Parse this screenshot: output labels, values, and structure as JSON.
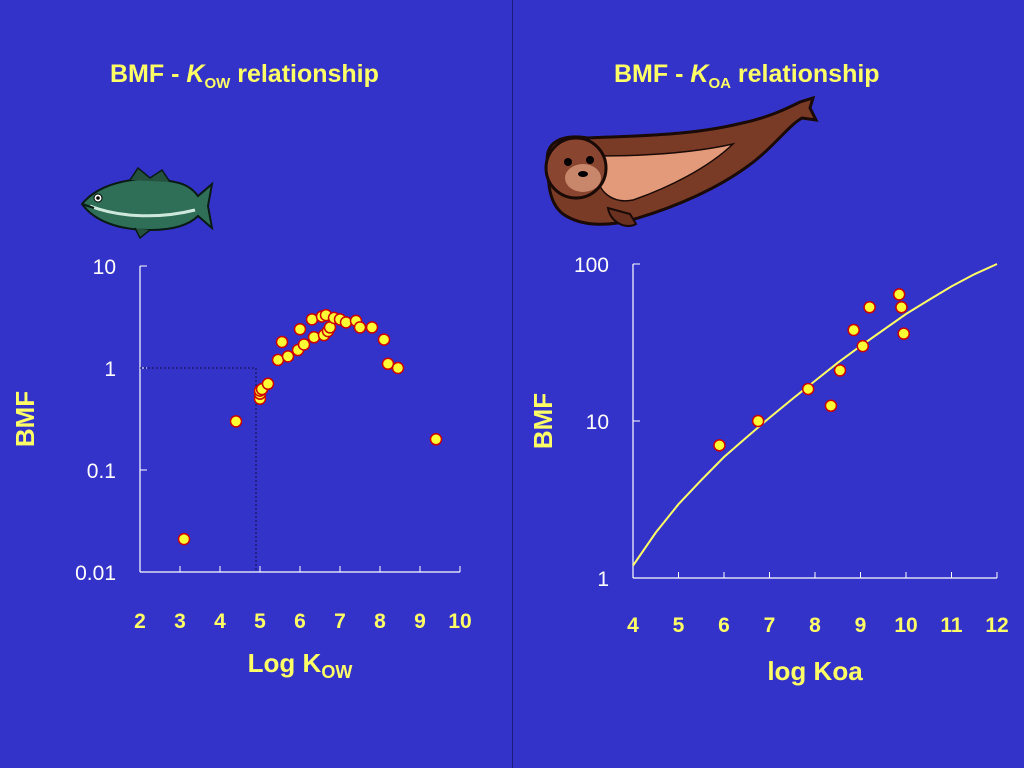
{
  "chart_data": [
    {
      "type": "scatter",
      "title_prefix": "BMF - ",
      "title_k": "K",
      "title_sub": "OW",
      "title_suffix": " relationship",
      "xlabel": "Log K",
      "xlabel_sub": "OW",
      "ylabel": "BMF",
      "y_scale": "log",
      "xlim": [
        2,
        10
      ],
      "ylim": [
        0.01,
        10
      ],
      "x_ticks": [
        "2",
        "3",
        "4",
        "5",
        "6",
        "7",
        "8",
        "9",
        "10"
      ],
      "y_ticks": [
        "10",
        "1",
        "0.1",
        "0.01"
      ],
      "icon": "fish-icon",
      "reference_lines": {
        "y": 1,
        "x": 4.9
      },
      "points": [
        {
          "x": 3.1,
          "y": 0.021
        },
        {
          "x": 4.4,
          "y": 0.3
        },
        {
          "x": 5.0,
          "y": 0.5
        },
        {
          "x": 5.0,
          "y": 0.56
        },
        {
          "x": 5.0,
          "y": 0.6
        },
        {
          "x": 5.05,
          "y": 0.62
        },
        {
          "x": 5.2,
          "y": 0.7
        },
        {
          "x": 5.45,
          "y": 1.2
        },
        {
          "x": 5.55,
          "y": 1.8
        },
        {
          "x": 5.7,
          "y": 1.3
        },
        {
          "x": 5.95,
          "y": 1.5
        },
        {
          "x": 6.0,
          "y": 2.4
        },
        {
          "x": 6.1,
          "y": 1.7
        },
        {
          "x": 6.3,
          "y": 3.0
        },
        {
          "x": 6.35,
          "y": 2.0
        },
        {
          "x": 6.55,
          "y": 3.2
        },
        {
          "x": 6.6,
          "y": 2.1
        },
        {
          "x": 6.65,
          "y": 3.3
        },
        {
          "x": 6.7,
          "y": 2.3
        },
        {
          "x": 6.75,
          "y": 2.5
        },
        {
          "x": 6.85,
          "y": 3.1
        },
        {
          "x": 7.0,
          "y": 3.0
        },
        {
          "x": 7.15,
          "y": 2.8
        },
        {
          "x": 7.4,
          "y": 2.9
        },
        {
          "x": 7.5,
          "y": 2.5
        },
        {
          "x": 7.8,
          "y": 2.5
        },
        {
          "x": 8.1,
          "y": 1.9
        },
        {
          "x": 8.2,
          "y": 1.1
        },
        {
          "x": 8.45,
          "y": 1.0
        },
        {
          "x": 9.4,
          "y": 0.2
        }
      ]
    },
    {
      "type": "scatter",
      "title_prefix": "BMF - ",
      "title_k": "K",
      "title_sub": "OA",
      "title_suffix": "  relationship",
      "xlabel": "log Koa",
      "xlabel_sub": "",
      "ylabel": "BMF",
      "y_scale": "log",
      "xlim": [
        4,
        12
      ],
      "ylim": [
        1,
        100
      ],
      "x_ticks": [
        "4",
        "5",
        "6",
        "7",
        "8",
        "9",
        "10",
        "11",
        "12"
      ],
      "y_ticks": [
        "100",
        "10",
        "1"
      ],
      "icon": "seal-icon",
      "points": [
        {
          "x": 5.9,
          "y": 7.0
        },
        {
          "x": 6.75,
          "y": 10.0
        },
        {
          "x": 7.85,
          "y": 16.0
        },
        {
          "x": 8.35,
          "y": 12.5
        },
        {
          "x": 8.55,
          "y": 21.0
        },
        {
          "x": 8.85,
          "y": 38.0
        },
        {
          "x": 9.05,
          "y": 30.0
        },
        {
          "x": 9.2,
          "y": 53.0
        },
        {
          "x": 9.85,
          "y": 64.0
        },
        {
          "x": 9.9,
          "y": 53.0
        },
        {
          "x": 9.95,
          "y": 36.0
        }
      ],
      "fit_line": [
        {
          "x": 4.0,
          "y": 1.2
        },
        {
          "x": 4.5,
          "y": 1.95
        },
        {
          "x": 5.0,
          "y": 2.95
        },
        {
          "x": 5.5,
          "y": 4.2
        },
        {
          "x": 6.0,
          "y": 5.9
        },
        {
          "x": 6.5,
          "y": 7.9
        },
        {
          "x": 7.0,
          "y": 10.5
        },
        {
          "x": 7.5,
          "y": 13.8
        },
        {
          "x": 8.0,
          "y": 18.0
        },
        {
          "x": 8.5,
          "y": 23.5
        },
        {
          "x": 9.0,
          "y": 30.0
        },
        {
          "x": 9.5,
          "y": 38.0
        },
        {
          "x": 10.0,
          "y": 48.0
        },
        {
          "x": 10.5,
          "y": 59.0
        },
        {
          "x": 11.0,
          "y": 72.0
        },
        {
          "x": 11.5,
          "y": 86.0
        },
        {
          "x": 12.0,
          "y": 100.0
        }
      ]
    }
  ],
  "colors": {
    "background": "#3333c9",
    "text": "#ffff66",
    "axis": "#ffffff",
    "marker_fill": "#ffff33",
    "marker_edge": "#cc0000",
    "fit_line": "#ffff66"
  }
}
